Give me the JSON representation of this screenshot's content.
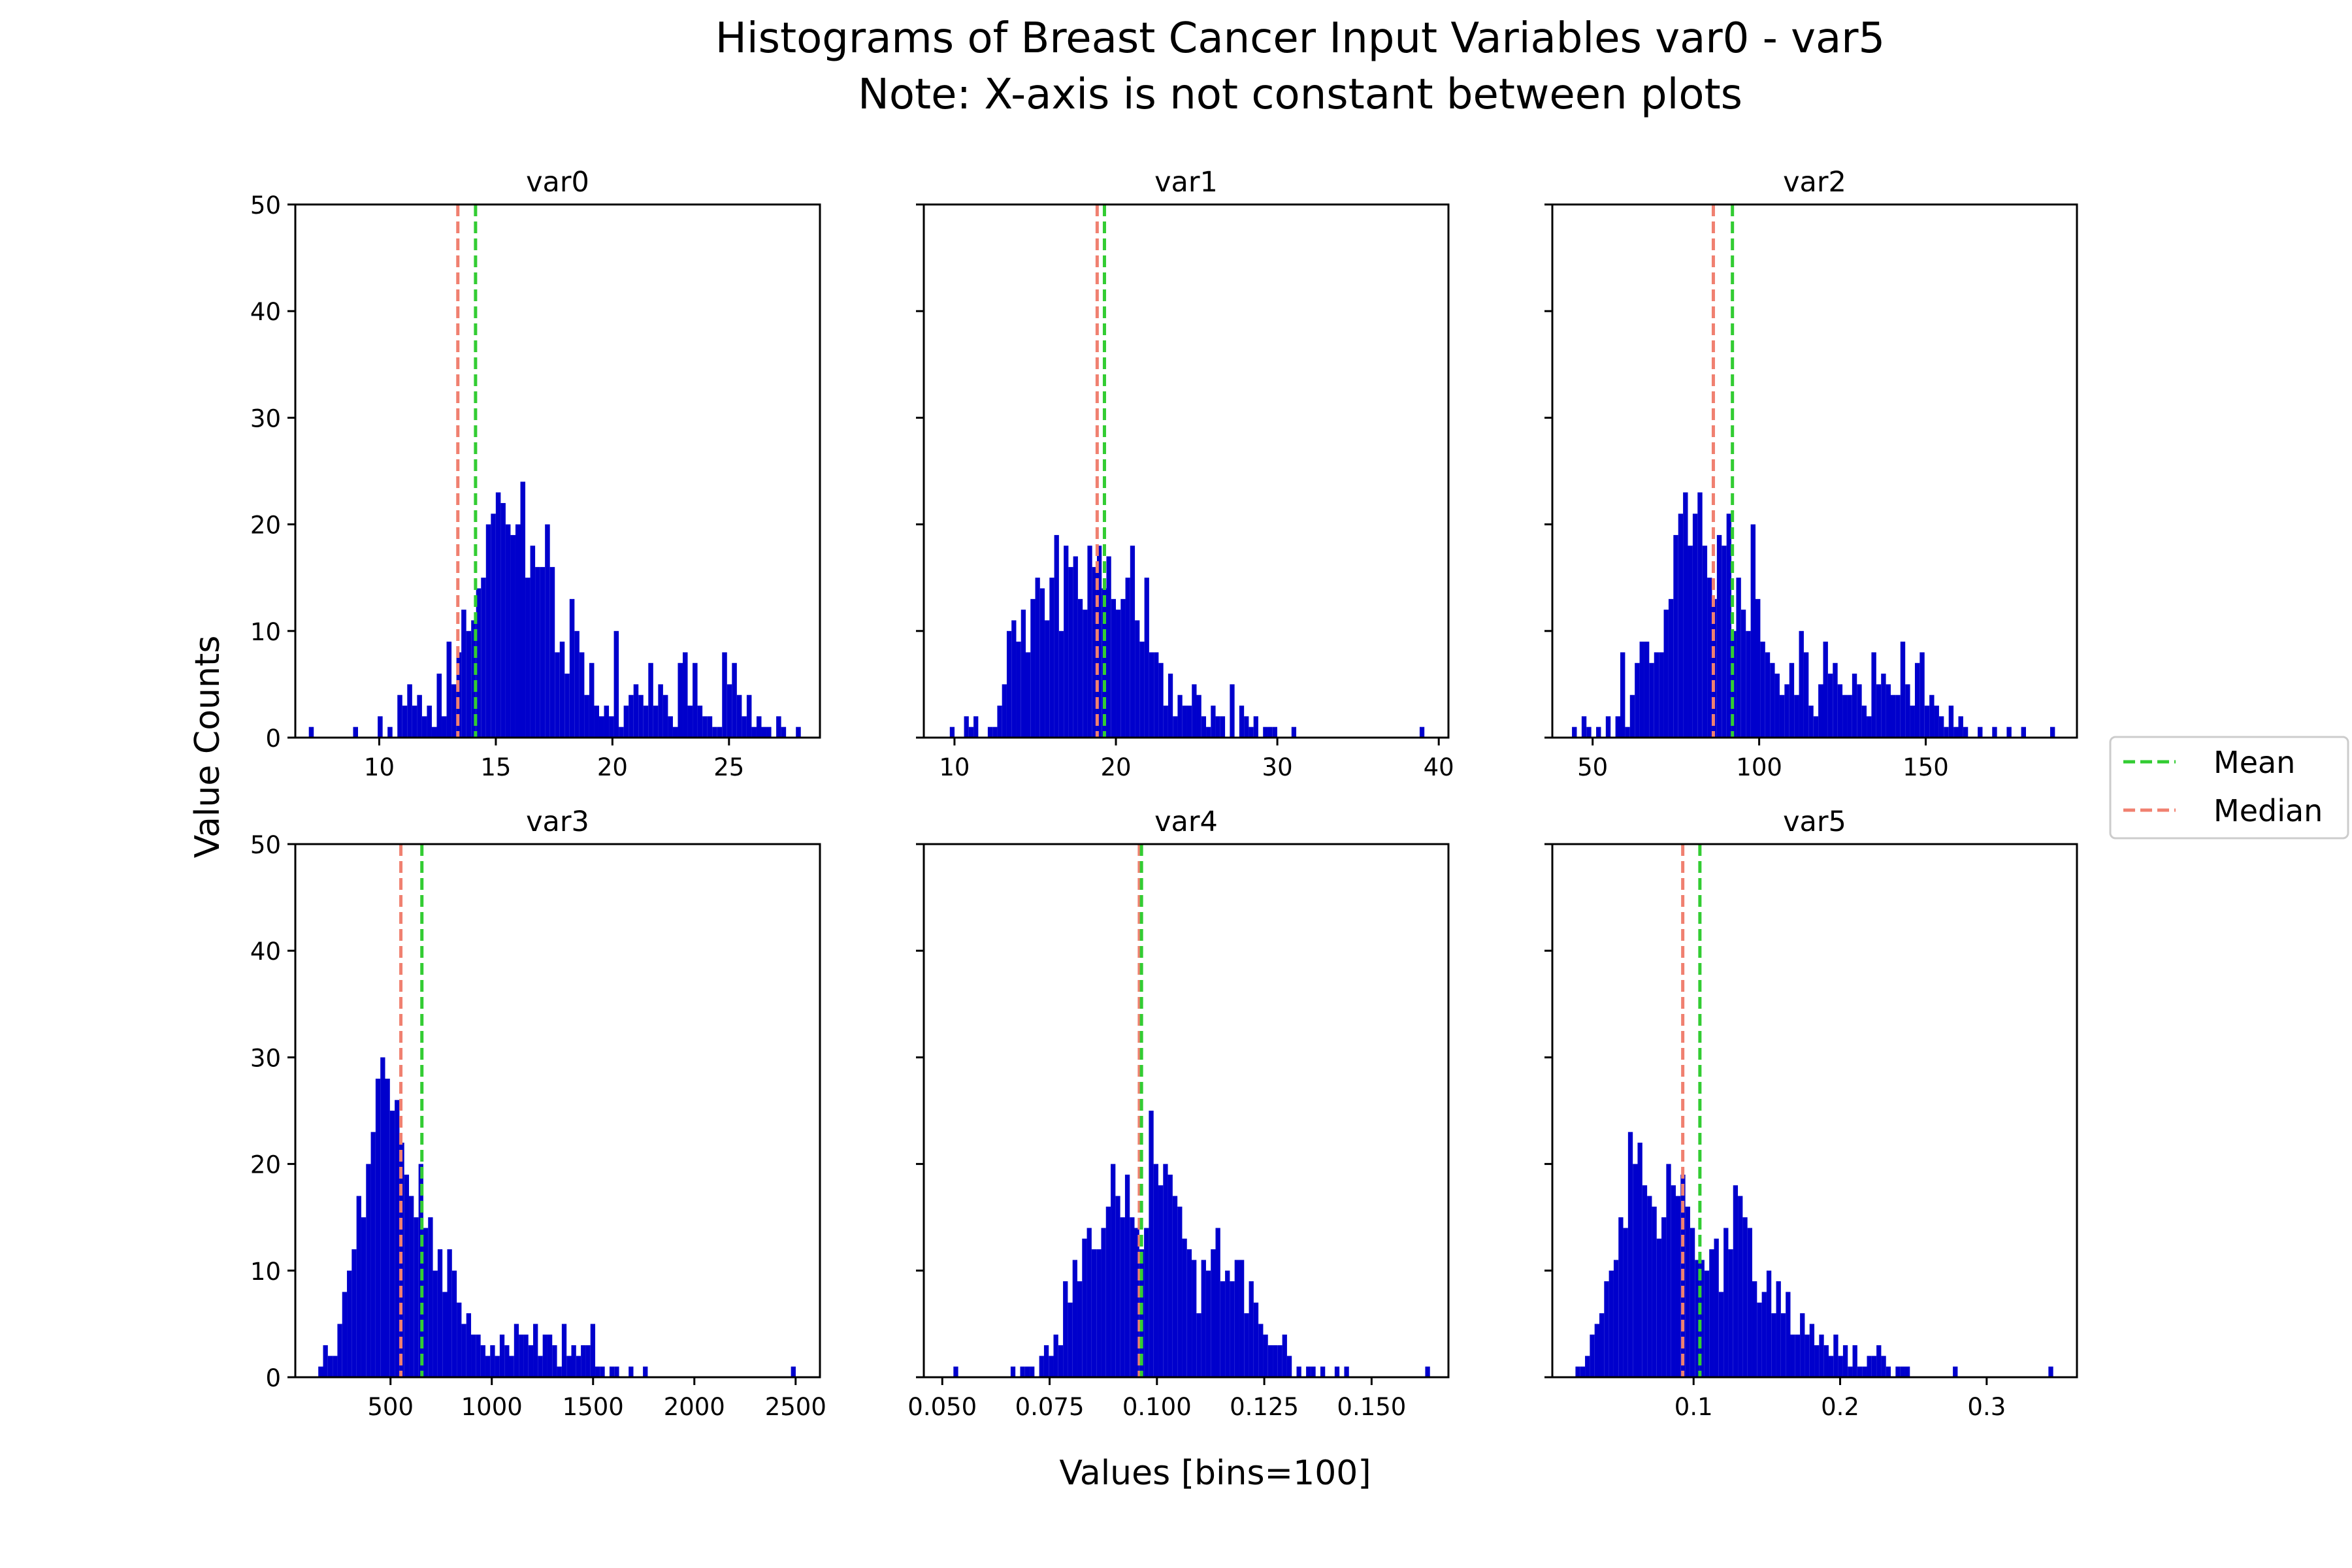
{
  "figure": {
    "title_line1": "Histograms of Breast Cancer Input Variables var0 - var5",
    "title_line2": "Note: X-axis is not constant between plots",
    "xlabel": "Values [bins=100]",
    "ylabel": "Value Counts"
  },
  "legend": {
    "placement": "right",
    "entries": [
      {
        "label": "Mean",
        "color": "#33cc33",
        "style": "dashed"
      },
      {
        "label": "Median",
        "color": "#f08070",
        "style": "dashed"
      }
    ]
  },
  "colors": {
    "bars": "#0000cc",
    "mean": "#33cc33",
    "median": "#f08070"
  },
  "chart_data": [
    {
      "type": "bar",
      "title": "var0",
      "ylim": [
        0,
        50
      ],
      "xlim": [
        6.4,
        28.9
      ],
      "xticks": [
        10,
        15,
        20,
        25
      ],
      "xtick_labels": [
        "10",
        "15",
        "20",
        "25"
      ],
      "yticks": [
        0,
        10,
        20,
        30,
        40,
        50
      ],
      "ytick_labels": [
        "0",
        "10",
        "20",
        "30",
        "40",
        "50"
      ],
      "bin_start": 6.98,
      "bin_width": 0.211,
      "counts": [
        1,
        0,
        0,
        0,
        0,
        0,
        0,
        0,
        0,
        1,
        0,
        0,
        0,
        0,
        2,
        0,
        1,
        0,
        4,
        3,
        5,
        3,
        4,
        2,
        3,
        1,
        6,
        2,
        9,
        5,
        8,
        12,
        10,
        11,
        14,
        15,
        20,
        21,
        23,
        22,
        20,
        19,
        20,
        24,
        15,
        18,
        16,
        16,
        20,
        16,
        8,
        9,
        6,
        13,
        10,
        8,
        4,
        7,
        3,
        2,
        3,
        2,
        10,
        1,
        3,
        4,
        5,
        4,
        3,
        7,
        3,
        5,
        4,
        2,
        1,
        7,
        8,
        3,
        7,
        3,
        2,
        2,
        1,
        1,
        8,
        5,
        7,
        4,
        2,
        4,
        1,
        2,
        1,
        1,
        0,
        2,
        1,
        0,
        0,
        1
      ],
      "mean": 14.13,
      "median": 13.37
    },
    {
      "type": "bar",
      "title": "var1",
      "ylim": [
        0,
        50
      ],
      "xlim": [
        8.1,
        40.6
      ],
      "xticks": [
        10,
        20,
        30,
        40
      ],
      "xtick_labels": [
        "10",
        "20",
        "30",
        "40"
      ],
      "yticks": [
        0,
        10,
        20,
        30,
        40,
        50
      ],
      "ytick_labels": [
        "0",
        "10",
        "20",
        "30",
        "40",
        "50"
      ],
      "bin_start": 9.71,
      "bin_width": 0.294,
      "counts": [
        1,
        0,
        0,
        2,
        1,
        2,
        0,
        0,
        1,
        1,
        3,
        5,
        10,
        11,
        9,
        12,
        8,
        13,
        15,
        14,
        11,
        15,
        19,
        10,
        18,
        16,
        17,
        13,
        12,
        18,
        16,
        18,
        14,
        17,
        13,
        12,
        13,
        15,
        18,
        11,
        9,
        15,
        8,
        8,
        7,
        3,
        6,
        2,
        4,
        3,
        3,
        5,
        4,
        2,
        1,
        3,
        2,
        2,
        0,
        5,
        0,
        3,
        2,
        1,
        2,
        0,
        1,
        1,
        1,
        0,
        0,
        0,
        1,
        0,
        0,
        0,
        0,
        0,
        0,
        0,
        0,
        0,
        0,
        0,
        0,
        0,
        0,
        0,
        0,
        0,
        0,
        0,
        0,
        0,
        0,
        0,
        0,
        0,
        0,
        1
      ],
      "mean": 19.29,
      "median": 18.84
    },
    {
      "type": "bar",
      "title": "var2",
      "ylim": [
        0,
        50
      ],
      "xlim": [
        37.9,
        195.4
      ],
      "xticks": [
        50,
        100,
        150
      ],
      "xtick_labels": [
        "50",
        "100",
        "150"
      ],
      "yticks": [
        0,
        10,
        20,
        30,
        40,
        50
      ],
      "ytick_labels": [
        "0",
        "10",
        "20",
        "30",
        "40",
        "50"
      ],
      "bin_start": 43.8,
      "bin_width": 1.45,
      "counts": [
        1,
        0,
        2,
        1,
        0,
        1,
        0,
        2,
        0,
        2,
        8,
        1,
        4,
        7,
        9,
        9,
        7,
        8,
        8,
        12,
        13,
        19,
        21,
        23,
        18,
        21,
        23,
        18,
        15,
        13,
        19,
        18,
        21,
        10,
        15,
        12,
        10,
        20,
        13,
        9,
        8,
        7,
        6,
        4,
        5,
        7,
        4,
        10,
        8,
        3,
        2,
        5,
        9,
        6,
        7,
        5,
        4,
        4,
        6,
        5,
        3,
        2,
        8,
        5,
        6,
        5,
        4,
        4,
        9,
        5,
        3,
        7,
        8,
        3,
        4,
        3,
        2,
        1,
        3,
        1,
        2,
        1,
        0,
        0,
        1,
        0,
        0,
        1,
        0,
        0,
        1,
        0,
        0,
        1,
        0,
        0,
        0,
        0,
        0,
        1
      ],
      "mean": 91.97,
      "median": 86.24
    },
    {
      "type": "bar",
      "title": "var3",
      "ylim": [
        0,
        50
      ],
      "xlim": [
        30,
        2620
      ],
      "xticks": [
        500,
        1000,
        1500,
        2000,
        2500
      ],
      "xtick_labels": [
        "500",
        "1000",
        "1500",
        "2000",
        "2500"
      ],
      "yticks": [
        0,
        10,
        20,
        30,
        40,
        50
      ],
      "ytick_labels": [
        "0",
        "10",
        "20",
        "30",
        "40",
        "50"
      ],
      "bin_start": 143.5,
      "bin_width": 23.57,
      "counts": [
        1,
        3,
        2,
        2,
        5,
        8,
        10,
        12,
        17,
        15,
        20,
        23,
        28,
        30,
        28,
        25,
        26,
        22,
        19,
        17,
        15,
        20,
        14,
        15,
        10,
        12,
        8,
        12,
        10,
        7,
        5,
        6,
        4,
        4,
        3,
        2,
        3,
        2,
        4,
        3,
        2,
        5,
        4,
        4,
        3,
        5,
        2,
        4,
        4,
        3,
        1,
        5,
        2,
        3,
        2,
        3,
        3,
        5,
        1,
        1,
        0,
        1,
        1,
        0,
        0,
        1,
        0,
        0,
        1,
        0,
        0,
        0,
        0,
        0,
        0,
        0,
        0,
        0,
        0,
        0,
        0,
        0,
        0,
        0,
        0,
        0,
        0,
        0,
        0,
        0,
        0,
        0,
        0,
        0,
        0,
        0,
        0,
        0,
        0,
        1
      ],
      "mean": 654.9,
      "median": 551.1
    },
    {
      "type": "bar",
      "title": "var4",
      "ylim": [
        0,
        50
      ],
      "xlim": [
        0.0457,
        0.1679
      ],
      "xticks": [
        0.05,
        0.075,
        0.1,
        0.125,
        0.15
      ],
      "xtick_labels": [
        "0.050",
        "0.075",
        "0.100",
        "0.125",
        "0.150"
      ],
      "yticks": [
        0,
        10,
        20,
        30,
        40,
        50
      ],
      "ytick_labels": [
        "0",
        "10",
        "20",
        "30",
        "40",
        "50"
      ],
      "bin_start": 0.0526,
      "bin_width": 0.00111,
      "counts": [
        1,
        0,
        0,
        0,
        0,
        0,
        0,
        0,
        0,
        0,
        0,
        0,
        1,
        0,
        1,
        1,
        1,
        0,
        2,
        3,
        2,
        4,
        3,
        9,
        7,
        11,
        9,
        13,
        14,
        12,
        12,
        14,
        16,
        20,
        17,
        15,
        19,
        15,
        14,
        12,
        14,
        25,
        20,
        18,
        20,
        19,
        17,
        16,
        13,
        12,
        11,
        6,
        11,
        10,
        12,
        14,
        9,
        10,
        9,
        11,
        11,
        6,
        9,
        7,
        5,
        4,
        3,
        3,
        3,
        4,
        2,
        0,
        1,
        0,
        1,
        1,
        0,
        1,
        0,
        0,
        1,
        0,
        1,
        0,
        0,
        0,
        0,
        0,
        0,
        0,
        0,
        0,
        0,
        0,
        0,
        0,
        0,
        0,
        0,
        1
      ],
      "mean": 0.0964,
      "median": 0.0959
    },
    {
      "type": "bar",
      "title": "var5",
      "ylim": [
        0,
        50
      ],
      "xlim": [
        0.0036,
        0.3616
      ],
      "xticks": [
        0.1,
        0.2,
        0.3
      ],
      "xtick_labels": [
        "0.1",
        "0.2",
        "0.3"
      ],
      "yticks": [
        0,
        10,
        20,
        30,
        40,
        50
      ],
      "ytick_labels": [
        "0",
        "10",
        "20",
        "30",
        "40",
        "50"
      ],
      "bin_start": 0.0194,
      "bin_width": 0.00326,
      "counts": [
        1,
        1,
        2,
        4,
        5,
        6,
        9,
        10,
        11,
        15,
        14,
        23,
        20,
        22,
        18,
        17,
        16,
        13,
        15,
        20,
        18,
        17,
        19,
        16,
        14,
        11,
        11,
        10,
        12,
        13,
        8,
        14,
        12,
        18,
        17,
        15,
        14,
        9,
        7,
        8,
        10,
        6,
        9,
        6,
        8,
        4,
        4,
        6,
        4,
        5,
        3,
        4,
        3,
        2,
        4,
        2,
        3,
        1,
        3,
        1,
        1,
        2,
        2,
        3,
        2,
        1,
        0,
        1,
        1,
        1,
        0,
        0,
        0,
        0,
        0,
        0,
        0,
        0,
        0,
        1,
        0,
        0,
        0,
        0,
        0,
        0,
        0,
        0,
        0,
        0,
        0,
        0,
        0,
        0,
        0,
        0,
        0,
        0,
        0,
        1
      ],
      "mean": 0.1043,
      "median": 0.0926
    }
  ]
}
